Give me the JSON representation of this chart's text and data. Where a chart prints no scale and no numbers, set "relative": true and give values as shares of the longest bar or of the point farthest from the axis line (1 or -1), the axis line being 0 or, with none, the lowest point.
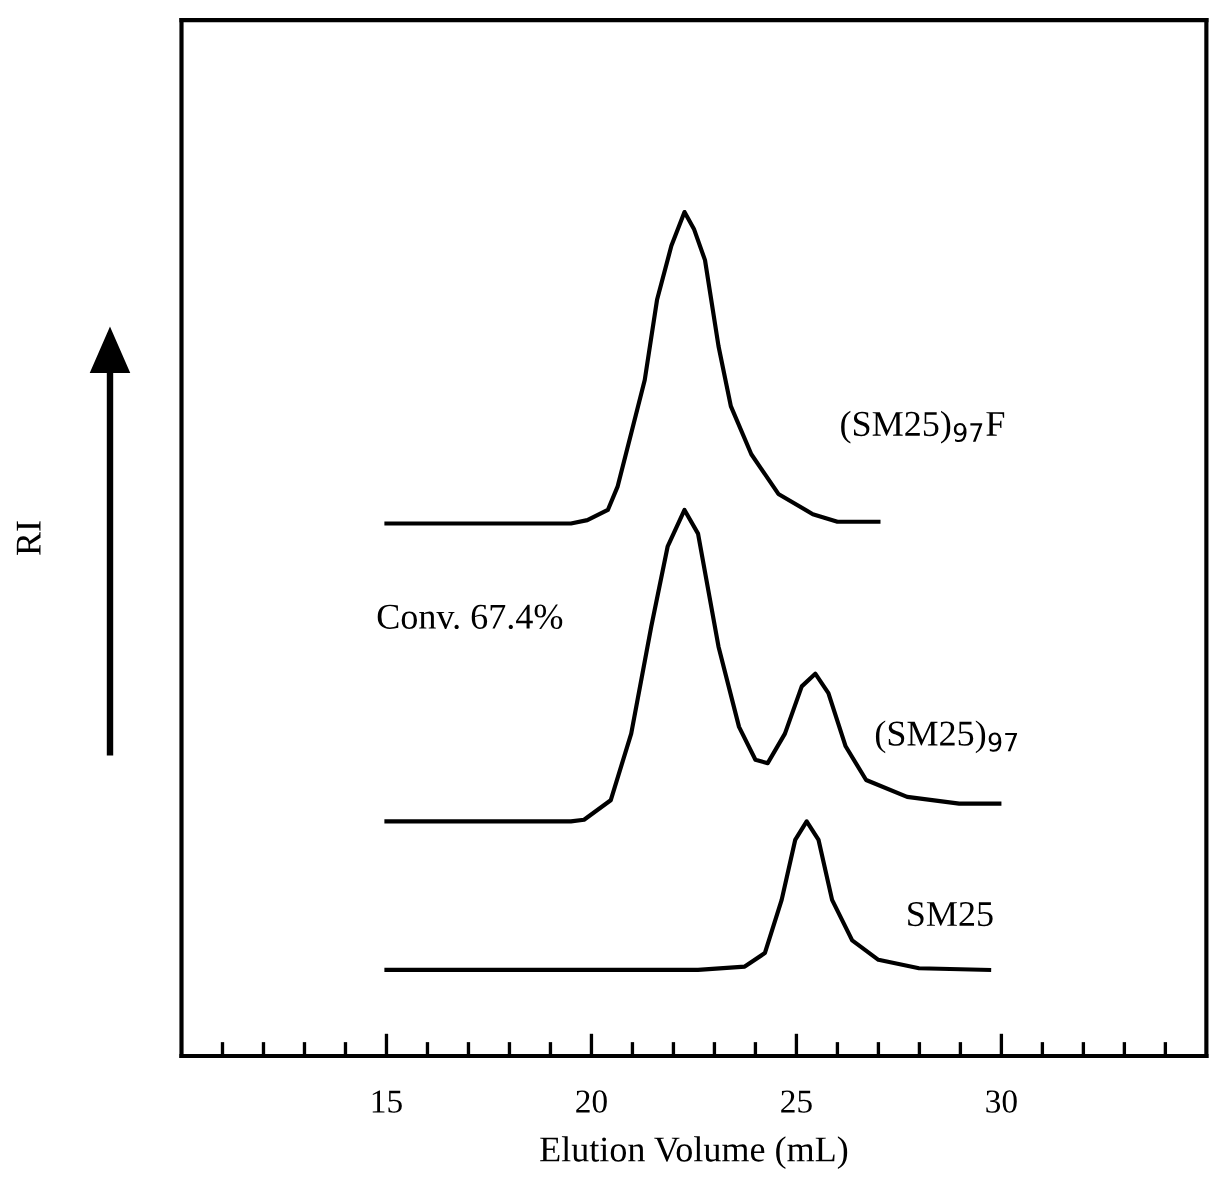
{
  "chart_data": {
    "type": "line",
    "relative": true,
    "xlabel": "Elution Volume (mL)",
    "ylabel": "RI",
    "xlim": [
      10,
      35
    ],
    "xticks": [
      {
        "value": 11,
        "label": null
      },
      {
        "value": 12,
        "label": null
      },
      {
        "value": 13,
        "label": null
      },
      {
        "value": 14,
        "label": null
      },
      15,
      {
        "value": 16,
        "label": null
      },
      {
        "value": 17,
        "label": null
      },
      {
        "value": 18,
        "label": null
      },
      {
        "value": 19,
        "label": null
      },
      20,
      {
        "value": 21,
        "label": null
      },
      {
        "value": 22,
        "label": null
      },
      {
        "value": 23,
        "label": null
      },
      {
        "value": 24,
        "label": null
      },
      25,
      {
        "value": 26,
        "label": null
      },
      {
        "value": 27,
        "label": null
      },
      {
        "value": 28,
        "label": null
      },
      {
        "value": 29,
        "label": null
      },
      30,
      {
        "value": 31,
        "label": null
      },
      {
        "value": 32,
        "label": null
      },
      {
        "value": 33,
        "label": null
      },
      {
        "value": 34,
        "label": null
      }
    ],
    "tick_labels": "x",
    "grid": false,
    "legend": false,
    "marker": "none",
    "line_style": "solid",
    "series": [
      {
        "name": "(SM25)$_{97}$F",
        "color": "#000000",
        "x": [
          15,
          19.5,
          19.9,
          20.4,
          20.64,
          20.97,
          21.3,
          21.6,
          21.95,
          22.27,
          22.5,
          22.77,
          23.1,
          23.4,
          23.9,
          24.56,
          25.4,
          26.0,
          27.0
        ],
        "values": [
          0.631,
          0.631,
          0.635,
          0.647,
          0.675,
          0.738,
          0.801,
          0.896,
          0.96,
          1.0,
          0.98,
          0.943,
          0.841,
          0.77,
          0.713,
          0.666,
          0.642,
          0.633,
          0.633
        ]
      },
      {
        "name": "(SM25)$_{97}$",
        "color": "#000000",
        "x": [
          15,
          19.5,
          19.82,
          20.47,
          20.97,
          21.46,
          21.86,
          22.27,
          22.6,
          23.1,
          23.6,
          24.0,
          24.3,
          24.72,
          25.13,
          25.46,
          25.78,
          26.2,
          26.7,
          27.7,
          28.97,
          29.95
        ],
        "values": [
          0.278,
          0.278,
          0.28,
          0.303,
          0.382,
          0.509,
          0.604,
          0.647,
          0.619,
          0.485,
          0.39,
          0.351,
          0.347,
          0.382,
          0.438,
          0.453,
          0.43,
          0.367,
          0.327,
          0.307,
          0.299,
          0.299
        ]
      },
      {
        "name": "SM25",
        "color": "#000000",
        "x": [
          15,
          22.6,
          23.74,
          24.23,
          24.64,
          24.97,
          25.25,
          25.54,
          25.87,
          26.36,
          27.0,
          27.99,
          29.7
        ],
        "values": [
          0.102,
          0.102,
          0.106,
          0.122,
          0.185,
          0.256,
          0.278,
          0.256,
          0.185,
          0.137,
          0.114,
          0.104,
          0.102
        ]
      }
    ],
    "annotations": [
      "Conv. 67.4%"
    ]
  }
}
